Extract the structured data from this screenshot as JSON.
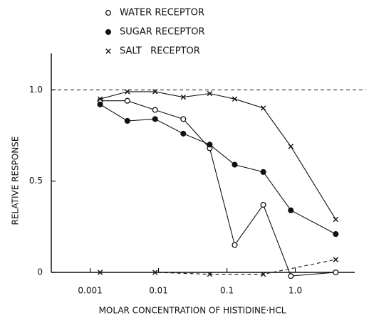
{
  "chart_data": {
    "type": "scatter",
    "x_label": "MOLAR CONCENTRATION OF HISTIDINE·HCL",
    "y_label": "RELATIVE RESPONSE",
    "log_x": true,
    "xlim": [
      0.00027,
      7.4
    ],
    "ylim": [
      0,
      1.2
    ],
    "xticks": [
      0.001,
      0.01,
      0.1,
      {
        "value": 1,
        "label": "1.0"
      }
    ],
    "yticks": [
      0,
      0.5,
      {
        "value": 1,
        "label": "1.0"
      }
    ],
    "reference_line": 1,
    "x": [
      0.0014,
      0.0035,
      0.0089,
      0.023,
      0.056,
      0.13,
      0.34,
      0.86,
      3.9
    ],
    "series": [
      {
        "name": "WATER RECEPTOR",
        "marker": "circle-open",
        "color": "#111",
        "values": [
          0.94,
          0.94,
          0.89,
          0.84,
          0.68,
          0.15,
          0.37,
          -0.02,
          0
        ]
      },
      {
        "name": "SUGAR RECEPTOR",
        "marker": "circle-filled",
        "color": "#111",
        "values": [
          0.92,
          0.83,
          0.84,
          0.76,
          0.7,
          0.59,
          0.55,
          0.34,
          0.21
        ]
      },
      {
        "name": "SALT   RECEPTOR",
        "marker": "x",
        "color": "#111",
        "values": [
          0.95,
          0.99,
          0.99,
          0.96,
          0.98,
          0.95,
          0.9,
          0.69,
          0.29
        ]
      },
      {
        "marker": "x",
        "color": "#111",
        "line": "dashed",
        "values": [
          0,
          null,
          0,
          null,
          -0.01,
          null,
          -0.01,
          null,
          0.07
        ]
      }
    ]
  }
}
